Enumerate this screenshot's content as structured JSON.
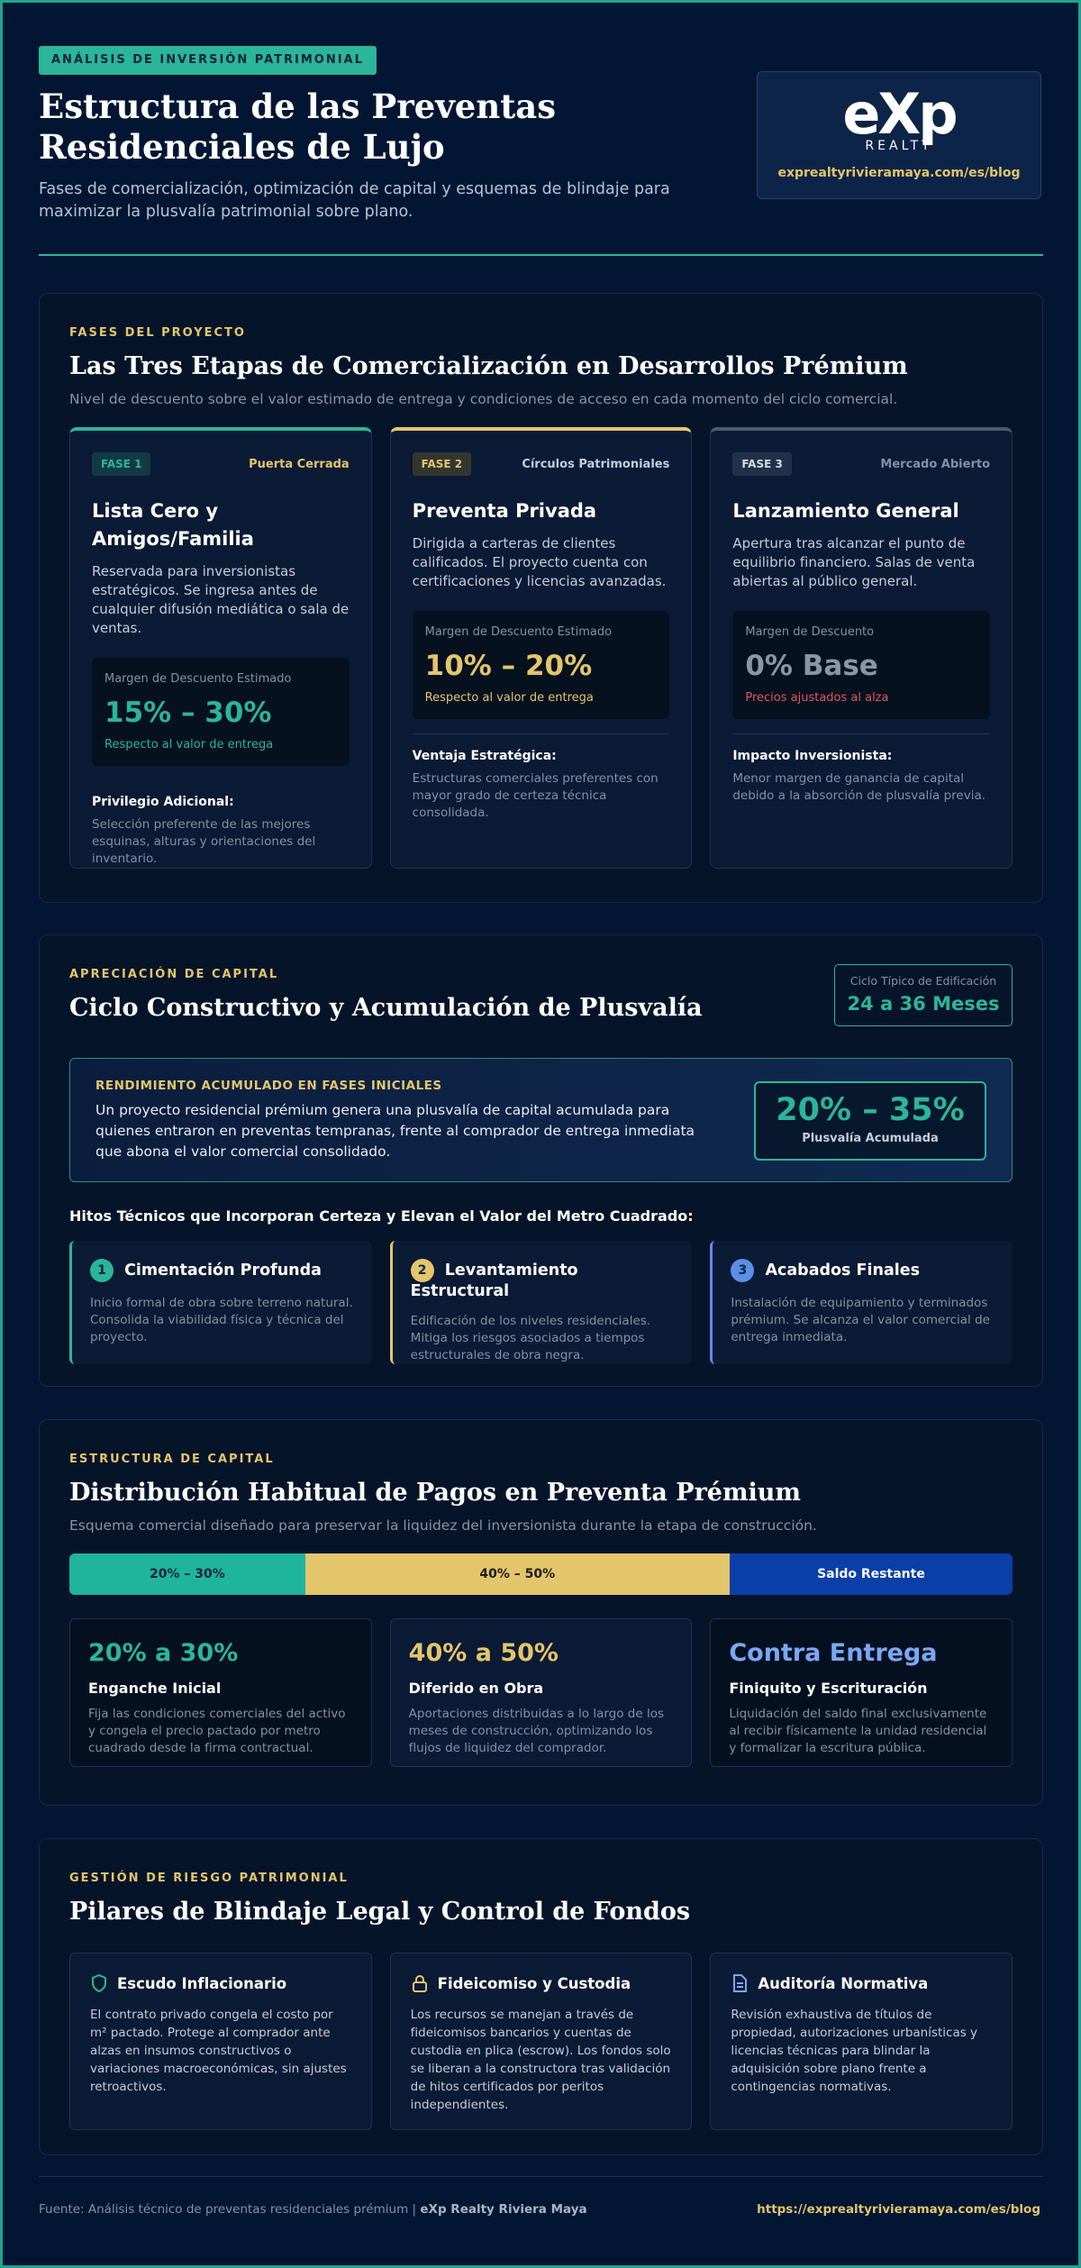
{
  "header": {
    "badge": "ANÁLISIS DE INVERSIÓN PATRIMONIAL",
    "title": "Estructura de las Preventas Residenciales de Lujo",
    "subtitle": "Fases de comercialización, optimización de capital y esquemas de blindaje para maximizar la plusvalía patrimonial sobre plano.",
    "logo_text": "eXp",
    "logo_sub": "REALTY",
    "url": "exprealtyrivieramaya.com/es/blog"
  },
  "phases": {
    "eyebrow": "FASES DEL PROYECTO",
    "title": "Las Tres Etapas de Comercialización en Desarrollos Prémium",
    "subtitle": "Nivel de descuento sobre el valor estimado de entrega y condiciones de acceso en cada momento del ciclo comercial.",
    "cards": [
      {
        "tag": "FASE 1",
        "label": "Puerta Cerrada",
        "name": "Lista Cero y Amigos/Familia",
        "description": "Reservada para inversionistas estratégicos. Se ingresa antes de cualquier difusión mediática o sala de ventas.",
        "metric_label": "Margen de Descuento Estimado",
        "metric": "15% – 30%",
        "metric_note": "Respecto al valor de entrega",
        "extra_title": "Privilegio Adicional:",
        "extra_text": "Selección preferente de las mejores esquinas, alturas y orientaciones del inventario."
      },
      {
        "tag": "FASE 2",
        "label": "Círculos Patrimoniales",
        "name": "Preventa Privada",
        "description": "Dirigida a carteras de clientes calificados. El proyecto cuenta con certificaciones y licencias avanzadas.",
        "metric_label": "Margen de Descuento Estimado",
        "metric": "10% – 20%",
        "metric_note": "Respecto al valor de entrega",
        "extra_title": "Ventaja Estratégica:",
        "extra_text": "Estructuras comerciales preferentes con mayor grado de certeza técnica consolidada."
      },
      {
        "tag": "FASE 3",
        "label": "Mercado Abierto",
        "name": "Lanzamiento General",
        "description": "Apertura tras alcanzar el punto de equilibrio financiero. Salas de venta abiertas al público general.",
        "metric_label": "Margen de Descuento",
        "metric": "0% Base",
        "metric_note": "Precios ajustados al alza",
        "extra_title": "Impacto Inversionista:",
        "extra_text": "Menor margen de ganancia de capital debido a la absorción de plusvalía previa."
      }
    ]
  },
  "appreciation": {
    "eyebrow": "APRECIACIÓN DE CAPITAL",
    "title": "Ciclo Constructivo y Acumulación de Plusvalía",
    "cycle_label": "Ciclo Típico de Edificación",
    "cycle_value": "24 a 36 Meses",
    "highlight": {
      "label": "RENDIMIENTO ACUMULADO EN FASES INICIALES",
      "text": "Un proyecto residencial prémium genera una plusvalía de capital acumulada para quienes entraron en preventas tempranas, frente al comprador de entrega inmediata que abona el valor comercial consolidado.",
      "value": "20% – 35%",
      "value_label": "Plusvalía Acumulada"
    },
    "milestones_title": "Hitos Técnicos que Incorporan Certeza y Elevan el Valor del Metro Cuadrado:",
    "milestones": [
      {
        "number": "1",
        "title": "Cimentación Profunda",
        "text": "Inicio formal de obra sobre terreno natural. Consolida la viabilidad física y técnica del proyecto."
      },
      {
        "number": "2",
        "title": "Levantamiento Estructural",
        "text": "Edificación de los niveles residenciales. Mitiga los riesgos asociados a tiempos estructurales de obra negra."
      },
      {
        "number": "3",
        "title": "Acabados Finales",
        "text": "Instalación de equipamiento y terminados prémium. Se alcanza el valor comercial de entrega inmediata."
      }
    ]
  },
  "payments": {
    "eyebrow": "ESTRUCTURA DE CAPITAL",
    "title": "Distribución Habitual de Pagos en Preventa Prémium",
    "subtitle": "Esquema comercial diseñado para preservar la liquidez del inversionista durante la etapa de construcción.",
    "bar": [
      "20% – 30%",
      "40% – 50%",
      "Saldo Restante"
    ],
    "cards": [
      {
        "value": "20% a 30%",
        "title": "Enganche Inicial",
        "text": "Fija las condiciones comerciales del activo y congela el precio pactado por metro cuadrado desde la firma contractual."
      },
      {
        "value": "40% a 50%",
        "title": "Diferido en Obra",
        "text": "Aportaciones distribuidas a lo largo de los meses de construcción, optimizando los flujos de liquidez del comprador."
      },
      {
        "value": "Contra Entrega",
        "title": "Finiquito y Escrituración",
        "text": "Liquidación del saldo final exclusivamente al recibir físicamente la unidad residencial y formalizar la escritura pública."
      }
    ]
  },
  "protection": {
    "eyebrow": "GESTIÓN DE RIESGO PATRIMONIAL",
    "title": "Pilares de Blindaje Legal y Control de Fondos",
    "cards": [
      {
        "title": "Escudo Inflacionario",
        "text": "El contrato privado congela el costo por m² pactado. Protege al comprador ante alzas en insumos constructivos o variaciones macroeconómicas, sin ajustes retroactivos."
      },
      {
        "title": "Fideicomiso y Custodia",
        "text": "Los recursos se manejan a través de fideicomisos bancarios y cuentas de custodia en plica (escrow). Los fondos solo se liberan a la constructora tras validación de hitos certificados por peritos independientes."
      },
      {
        "title": "Auditoría Normativa",
        "text": "Revisión exhaustiva de títulos de propiedad, autorizaciones urbanísticas y licencias técnicas para blindar la adquisición sobre plano frente a contingencias normativas."
      }
    ]
  },
  "footer": {
    "source_prefix": "Fuente: Análisis técnico de preventas residenciales prémium |",
    "source_brand": "eXp Realty Riviera Maya",
    "url": "https://exprealtyrivieramaya.com/es/blog"
  }
}
